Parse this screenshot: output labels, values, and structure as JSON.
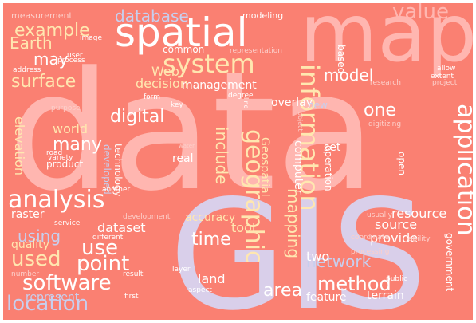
{
  "cloud": {
    "background_color": "#FA8072",
    "palette": [
      "#FFB6B0",
      "#FCCFCA",
      "#FFFFFF",
      "#FFE7B0",
      "#D9CFEA",
      "#C7CFEF"
    ],
    "words": [
      {
        "text": "data",
        "color": "#FFB6B0"
      },
      {
        "text": "GIS",
        "color": "#D9CFEA"
      },
      {
        "text": "map",
        "color": "#FFB6B0"
      },
      {
        "text": "spatial",
        "color": "#FFFFFF"
      },
      {
        "text": "system",
        "color": "#FFE7B0"
      },
      {
        "text": "information",
        "color": "#FFE7B0"
      },
      {
        "text": "geographic",
        "color": "#FFE7B0"
      },
      {
        "text": "analysis",
        "color": "#FFFFFF"
      },
      {
        "text": "application",
        "color": "#FFFFFF"
      },
      {
        "text": "location",
        "color": "#C7CFEF"
      },
      {
        "text": "software",
        "color": "#FFFFFF"
      },
      {
        "text": "used",
        "color": "#FFE7B0"
      },
      {
        "text": "use",
        "color": "#FFFFFF"
      },
      {
        "text": "point",
        "color": "#FFFFFF"
      },
      {
        "text": "method",
        "color": "#FFFFFF"
      },
      {
        "text": "digital",
        "color": "#FFFFFF"
      },
      {
        "text": "many",
        "color": "#FFFFFF"
      },
      {
        "text": "surface",
        "color": "#FFE7B0"
      },
      {
        "text": "example",
        "color": "#FFE7B0"
      },
      {
        "text": "value",
        "color": "#FFB6B0"
      },
      {
        "text": "database",
        "color": "#C7CFEF"
      },
      {
        "text": "Earth",
        "color": "#FFE7B0"
      },
      {
        "text": "may",
        "color": "#FFFFFF"
      },
      {
        "text": "model",
        "color": "#FFFFFF"
      },
      {
        "text": "one",
        "color": "#FFFFFF"
      },
      {
        "text": "area",
        "color": "#FFFFFF"
      },
      {
        "text": "network",
        "color": "#C7CFEF"
      },
      {
        "text": "time",
        "color": "#FFFFFF"
      },
      {
        "text": "mapping",
        "color": "#FFE7B0"
      },
      {
        "text": "include",
        "color": "#FFE7B0"
      },
      {
        "text": "elevation",
        "color": "#FFE7B0"
      },
      {
        "text": "using",
        "color": "#C7CFEF"
      },
      {
        "text": "dataset",
        "color": "#FFFFFF"
      },
      {
        "text": "provide",
        "color": "#FFFFFF"
      },
      {
        "text": "source",
        "color": "#FFFFFF"
      },
      {
        "text": "resource",
        "color": "#FFFFFF"
      },
      {
        "text": "management",
        "color": "#FFFFFF"
      },
      {
        "text": "decision",
        "color": "#FFE7B0"
      },
      {
        "text": "Web",
        "color": "#FFE7B0"
      },
      {
        "text": "world",
        "color": "#FFE7B0"
      },
      {
        "text": "Geospatial",
        "color": "#FFE7B0"
      },
      {
        "text": "tool",
        "color": "#FFE7B0"
      },
      {
        "text": "land",
        "color": "#FFFFFF"
      },
      {
        "text": "two",
        "color": "#FFFFFF"
      },
      {
        "text": "overlay",
        "color": "#FFFFFF"
      },
      {
        "text": "feature",
        "color": "#FFFFFF"
      },
      {
        "text": "terrain",
        "color": "#FFFFFF"
      },
      {
        "text": "government",
        "color": "#FFFFFF"
      },
      {
        "text": "represent",
        "color": "#C7CFEF"
      },
      {
        "text": "accuracy",
        "color": "#FFE7B0"
      },
      {
        "text": "raster",
        "color": "#FFFFFF"
      },
      {
        "text": "quality",
        "color": "#FFE7B0"
      },
      {
        "text": "technology",
        "color": "#FFFFFF"
      },
      {
        "text": "product",
        "color": "#FFFFFF"
      },
      {
        "text": "developed",
        "color": "#C7CFEF"
      },
      {
        "text": "real",
        "color": "#FFFFFF"
      },
      {
        "text": "computer",
        "color": "#FFFFFF"
      },
      {
        "text": "operation",
        "color": "#FFFFFF"
      },
      {
        "text": "set",
        "color": "#FFFFFF"
      },
      {
        "text": "open",
        "color": "#FFFFFF"
      },
      {
        "text": "based",
        "color": "#FFFFFF"
      },
      {
        "text": "new",
        "color": "#C7CFEF"
      },
      {
        "text": "common",
        "color": "#FFFFFF"
      },
      {
        "text": "measurement",
        "color": "#FCCFCA"
      },
      {
        "text": "modeling",
        "color": "#FFFFFF"
      },
      {
        "text": "image",
        "color": "#FFFFFF"
      },
      {
        "text": "user",
        "color": "#FFFFFF"
      },
      {
        "text": "process",
        "color": "#FFFFFF"
      },
      {
        "text": "address",
        "color": "#FFFFFF"
      },
      {
        "text": "representation",
        "color": "#FCCFCA"
      },
      {
        "text": "research",
        "color": "#FCCFCA"
      },
      {
        "text": "allow",
        "color": "#FFFFFF"
      },
      {
        "text": "extent",
        "color": "#FFFFFF"
      },
      {
        "text": "project",
        "color": "#FCCFCA"
      },
      {
        "text": "form",
        "color": "#FFFFFF"
      },
      {
        "text": "key",
        "color": "#FFFFFF"
      },
      {
        "text": "degree",
        "color": "#FFFFFF"
      },
      {
        "text": "line",
        "color": "#FFFFFF"
      },
      {
        "text": "object",
        "color": "#FCCFCA"
      },
      {
        "text": "digitizing",
        "color": "#FCCFCA"
      },
      {
        "text": "purpose",
        "color": "#FCCFCA"
      },
      {
        "text": "road",
        "color": "#FFFFFF"
      },
      {
        "text": "variety",
        "color": "#FFFFFF"
      },
      {
        "text": "water",
        "color": "#FCCFCA"
      },
      {
        "text": "another",
        "color": "#FFFFFF"
      },
      {
        "text": "service",
        "color": "#FFFFFF"
      },
      {
        "text": "development",
        "color": "#FCCFCA"
      },
      {
        "text": "different",
        "color": "#FFFFFF"
      },
      {
        "text": "number",
        "color": "#FCCFCA"
      },
      {
        "text": "result",
        "color": "#FFFFFF"
      },
      {
        "text": "first",
        "color": "#FFFFFF"
      },
      {
        "text": "aspect",
        "color": "#FFFFFF"
      },
      {
        "text": "layer",
        "color": "#FFFFFF"
      },
      {
        "text": "usually",
        "color": "#FCCFCA"
      },
      {
        "text": "coordinate",
        "color": "#FCCFCA"
      },
      {
        "text": "ability",
        "color": "#FCCFCA"
      },
      {
        "text": "processing",
        "color": "#FCCFCA"
      },
      {
        "text": "public",
        "color": "#FFFFFF"
      }
    ]
  }
}
